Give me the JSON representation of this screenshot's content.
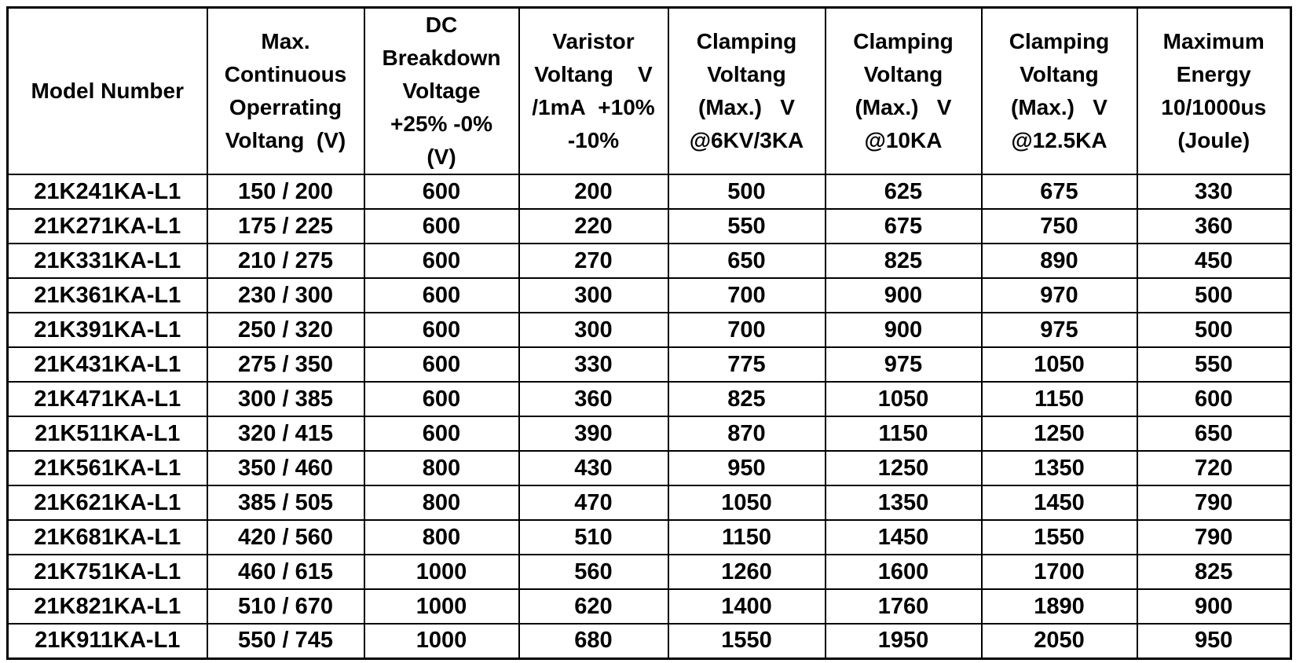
{
  "table": {
    "columns": [
      {
        "id": "model-number",
        "header_lines": [
          "Model Number"
        ]
      },
      {
        "id": "max-continuous-operating-voltage",
        "header_lines": [
          "Max.",
          "Continuous",
          "Operrating",
          "Voltang  (V)"
        ]
      },
      {
        "id": "dc-breakdown-voltage",
        "header_lines": [
          "DC",
          "Breakdown",
          "Voltage",
          "+25% -0%",
          "(V)"
        ]
      },
      {
        "id": "varistor-voltage-1ma",
        "header_lines": [
          "Varistor",
          "Voltang    V",
          "/1mA  +10%",
          "-10%"
        ]
      },
      {
        "id": "clamping-voltage-6kv-3ka",
        "header_lines": [
          "Clamping",
          "Voltang",
          "(Max.)   V",
          "@6KV/3KA"
        ]
      },
      {
        "id": "clamping-voltage-10ka",
        "header_lines": [
          "Clamping",
          "Voltang",
          "(Max.)   V",
          "@10KA"
        ]
      },
      {
        "id": "clamping-voltage-12-5ka",
        "header_lines": [
          "Clamping",
          "Voltang",
          "(Max.)   V",
          "@12.5KA"
        ]
      },
      {
        "id": "maximum-energy",
        "header_lines": [
          "Maximum",
          "Energy",
          "10/1000us",
          "(Joule)"
        ]
      }
    ],
    "rows": [
      [
        "21K241KA-L1",
        "150 / 200",
        "600",
        "200",
        "500",
        "625",
        "675",
        "330"
      ],
      [
        "21K271KA-L1",
        "175 / 225",
        "600",
        "220",
        "550",
        "675",
        "750",
        "360"
      ],
      [
        "21K331KA-L1",
        "210 / 275",
        "600",
        "270",
        "650",
        "825",
        "890",
        "450"
      ],
      [
        "21K361KA-L1",
        "230 / 300",
        "600",
        "300",
        "700",
        "900",
        "970",
        "500"
      ],
      [
        "21K391KA-L1",
        "250 / 320",
        "600",
        "300",
        "700",
        "900",
        "975",
        "500"
      ],
      [
        "21K431KA-L1",
        "275 / 350",
        "600",
        "330",
        "775",
        "975",
        "1050",
        "550"
      ],
      [
        "21K471KA-L1",
        "300 / 385",
        "600",
        "360",
        "825",
        "1050",
        "1150",
        "600"
      ],
      [
        "21K511KA-L1",
        "320 / 415",
        "600",
        "390",
        "870",
        "1150",
        "1250",
        "650"
      ],
      [
        "21K561KA-L1",
        "350 / 460",
        "800",
        "430",
        "950",
        "1250",
        "1350",
        "720"
      ],
      [
        "21K621KA-L1",
        "385 / 505",
        "800",
        "470",
        "1050",
        "1350",
        "1450",
        "790"
      ],
      [
        "21K681KA-L1",
        "420 / 560",
        "800",
        "510",
        "1150",
        "1450",
        "1550",
        "790"
      ],
      [
        "21K751KA-L1",
        "460 / 615",
        "1000",
        "560",
        "1260",
        "1600",
        "1700",
        "825"
      ],
      [
        "21K821KA-L1",
        "510 / 670",
        "1000",
        "620",
        "1400",
        "1760",
        "1890",
        "900"
      ],
      [
        "21K911KA-L1",
        "550 / 745",
        "1000",
        "680",
        "1550",
        "1950",
        "2050",
        "950"
      ]
    ],
    "colors": {
      "border": "#000000",
      "text": "#000000",
      "background": "#ffffff"
    }
  }
}
